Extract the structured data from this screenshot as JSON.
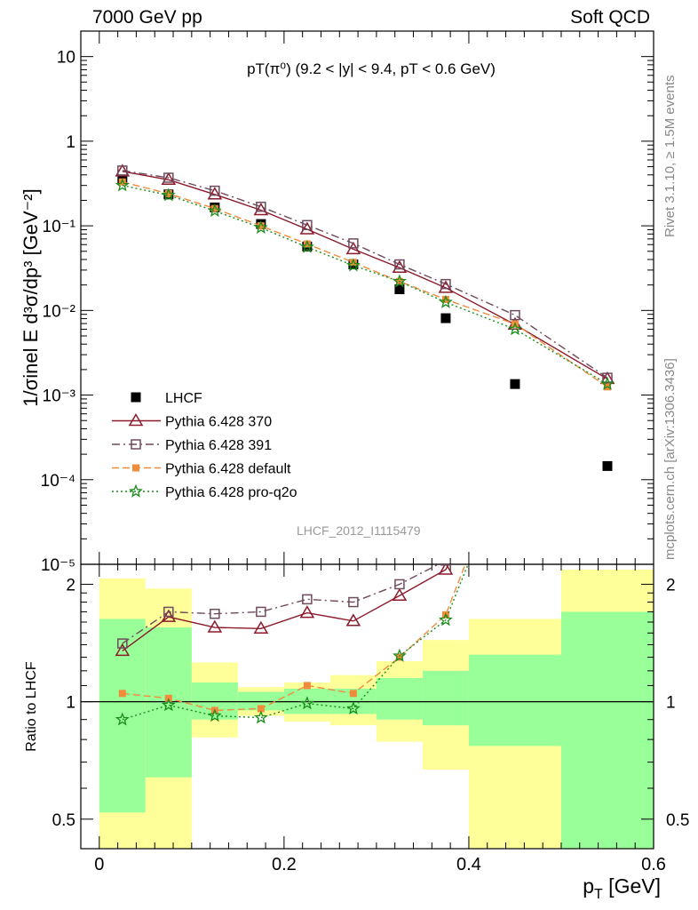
{
  "header": {
    "left": "7000 GeV pp",
    "right": "Soft QCD"
  },
  "sidebar": {
    "rivet": "Rivet 3.1.10, ≥ 1.5M events",
    "mcplots": "mcplots.cern.ch [arXiv:1306.3436]"
  },
  "watermark": "LHCF_2012_I1115479",
  "colors": {
    "lhcf": "#000000",
    "p370": "#8b1a2b",
    "p391": "#6e4a5e",
    "default": "#f08c3c",
    "proq2o": "#1a8c1a",
    "band_outer": "#ffff99",
    "band_inner": "#99ff99"
  },
  "chart_data": {
    "type": "line",
    "title": "pT(π⁰) (9.2 < |y| < 9.4, pT < 0.6 GeV)",
    "xlabel": "pT [GeV]",
    "ylabel": "1/σinel E d³σ/dp³ [GeV⁻²]",
    "ratio_ylabel": "Ratio to LHCF",
    "xlim": [
      -0.02,
      0.6
    ],
    "ylim": [
      1e-05,
      20
    ],
    "ratio_ylim": [
      0.42,
      2.25
    ],
    "yscale": "log",
    "ratio_yscale": "log",
    "xticks": [
      "0",
      "0.2",
      "0.4",
      "0.6"
    ],
    "yticks": [
      "10⁻⁵",
      "10⁻⁴",
      "10⁻³",
      "10⁻²",
      "10⁻¹",
      "1",
      "10"
    ],
    "ratio_yticks": [
      "0.5",
      "1",
      "2"
    ],
    "bins": [
      [
        0.0,
        0.05
      ],
      [
        0.05,
        0.1
      ],
      [
        0.1,
        0.15
      ],
      [
        0.15,
        0.2
      ],
      [
        0.2,
        0.25
      ],
      [
        0.25,
        0.3
      ],
      [
        0.3,
        0.35
      ],
      [
        0.35,
        0.4
      ],
      [
        0.4,
        0.5
      ],
      [
        0.5,
        0.6
      ]
    ],
    "x": [
      0.025,
      0.075,
      0.125,
      0.175,
      0.225,
      0.275,
      0.325,
      0.375,
      0.45,
      0.55
    ],
    "series": [
      {
        "name": "LHCF",
        "key": "lhcf",
        "marker": "square",
        "line": "none",
        "values": [
          0.35,
          0.235,
          0.165,
          0.105,
          0.057,
          0.035,
          0.0178,
          0.0081,
          0.00135,
          0.000145
        ]
      },
      {
        "name": "Pythia 6.428 370",
        "key": "p370",
        "marker": "triangle",
        "line": "solid",
        "values": [
          0.44,
          0.35,
          0.235,
          0.153,
          0.091,
          0.053,
          0.032,
          0.0185,
          0.0068,
          0.00155
        ],
        "ratio": [
          1.35,
          1.65,
          1.55,
          1.54,
          1.69,
          1.61,
          1.87,
          2.18,
          5.0,
          10.0
        ]
      },
      {
        "name": "Pythia 6.428 391",
        "key": "p391",
        "marker": "square-open",
        "line": "dashdot",
        "values": [
          0.45,
          0.37,
          0.26,
          0.168,
          0.102,
          0.062,
          0.035,
          0.0205,
          0.0088,
          0.0016
        ],
        "ratio": [
          1.41,
          1.7,
          1.68,
          1.7,
          1.83,
          1.8,
          2.0,
          2.3,
          5.5,
          11.0
        ]
      },
      {
        "name": "Pythia 6.428 default",
        "key": "default",
        "marker": "square-small",
        "line": "dash",
        "values": [
          0.33,
          0.24,
          0.16,
          0.1,
          0.061,
          0.037,
          0.022,
          0.0135,
          0.0069,
          0.00125
        ],
        "ratio": [
          1.05,
          1.02,
          0.95,
          0.96,
          1.1,
          1.05,
          1.3,
          1.67,
          4.8,
          8.5
        ]
      },
      {
        "name": "Pythia 6.428 pro-q2o",
        "key": "proq2o",
        "marker": "star",
        "line": "dot",
        "values": [
          0.3,
          0.23,
          0.15,
          0.095,
          0.056,
          0.034,
          0.022,
          0.0125,
          0.006,
          0.00135
        ],
        "ratio": [
          0.9,
          0.98,
          0.92,
          0.91,
          0.99,
          0.96,
          1.31,
          1.62,
          4.5,
          9.0
        ]
      }
    ],
    "ratio_band_inner": [
      [
        0.52,
        1.63
      ],
      [
        0.64,
        1.55
      ],
      [
        0.9,
        1.12
      ],
      [
        0.95,
        1.06
      ],
      [
        0.93,
        1.08
      ],
      [
        0.93,
        1.08
      ],
      [
        0.9,
        1.15
      ],
      [
        0.87,
        1.2
      ],
      [
        0.77,
        1.32
      ],
      [
        0.38,
        1.7
      ]
    ],
    "ratio_band_outer": [
      [
        0.32,
        2.07
      ],
      [
        0.38,
        1.95
      ],
      [
        0.81,
        1.26
      ],
      [
        0.92,
        1.09
      ],
      [
        0.89,
        1.12
      ],
      [
        0.87,
        1.17
      ],
      [
        0.79,
        1.27
      ],
      [
        0.67,
        1.44
      ],
      [
        0.38,
        1.63
      ],
      [
        0.38,
        2.18
      ]
    ],
    "legend": "left-middle",
    "grid": false
  }
}
